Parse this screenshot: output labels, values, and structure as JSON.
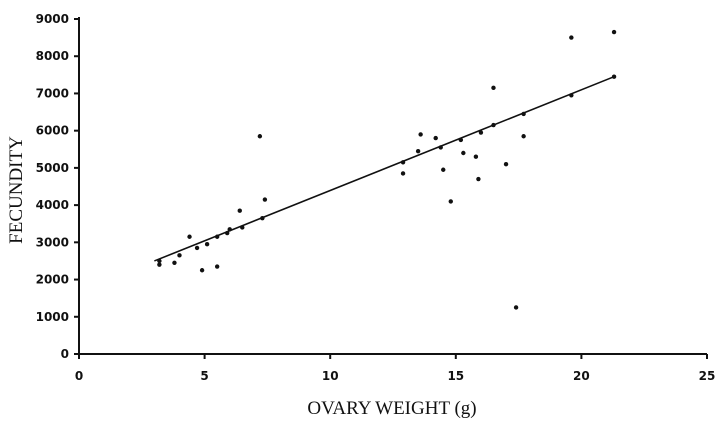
{
  "chart_data": {
    "type": "scatter",
    "title": "",
    "xlabel": "OVARY WEIGHT (g)",
    "ylabel": "FECUNDITY",
    "xlim": [
      0,
      25
    ],
    "ylim": [
      0,
      9000
    ],
    "grid": false,
    "x_ticks": [
      "0",
      "5",
      "10",
      "15",
      "20",
      "25"
    ],
    "y_ticks": [
      "0",
      "1000",
      "2000",
      "3000",
      "4000",
      "5000",
      "6000",
      "7000",
      "8000",
      "9000"
    ],
    "points": [
      {
        "x": 3.2,
        "y": 2400
      },
      {
        "x": 3.2,
        "y": 2500
      },
      {
        "x": 3.8,
        "y": 2450
      },
      {
        "x": 4.0,
        "y": 2650
      },
      {
        "x": 4.4,
        "y": 3150
      },
      {
        "x": 4.7,
        "y": 2850
      },
      {
        "x": 4.9,
        "y": 2250
      },
      {
        "x": 5.1,
        "y": 2950
      },
      {
        "x": 5.5,
        "y": 2350
      },
      {
        "x": 5.5,
        "y": 3150
      },
      {
        "x": 5.9,
        "y": 3250
      },
      {
        "x": 6.0,
        "y": 3350
      },
      {
        "x": 6.4,
        "y": 3850
      },
      {
        "x": 6.5,
        "y": 3400
      },
      {
        "x": 7.2,
        "y": 5850
      },
      {
        "x": 7.3,
        "y": 3650
      },
      {
        "x": 7.4,
        "y": 4150
      },
      {
        "x": 12.9,
        "y": 5150
      },
      {
        "x": 12.9,
        "y": 4850
      },
      {
        "x": 13.5,
        "y": 5450
      },
      {
        "x": 13.6,
        "y": 5900
      },
      {
        "x": 14.2,
        "y": 5800
      },
      {
        "x": 14.4,
        "y": 5550
      },
      {
        "x": 14.5,
        "y": 4950
      },
      {
        "x": 14.8,
        "y": 4100
      },
      {
        "x": 15.2,
        "y": 5750
      },
      {
        "x": 15.3,
        "y": 5400
      },
      {
        "x": 15.8,
        "y": 5300
      },
      {
        "x": 15.9,
        "y": 4700
      },
      {
        "x": 16.0,
        "y": 5950
      },
      {
        "x": 16.5,
        "y": 7150
      },
      {
        "x": 16.5,
        "y": 6150
      },
      {
        "x": 17.0,
        "y": 5100
      },
      {
        "x": 17.4,
        "y": 1250
      },
      {
        "x": 17.7,
        "y": 5850
      },
      {
        "x": 17.7,
        "y": 6450
      },
      {
        "x": 19.6,
        "y": 8500
      },
      {
        "x": 19.6,
        "y": 6950
      },
      {
        "x": 21.3,
        "y": 8650
      },
      {
        "x": 21.3,
        "y": 7450
      }
    ],
    "trendline": {
      "x": [
        3.0,
        21.3
      ],
      "y": [
        2500,
        7450
      ]
    }
  }
}
